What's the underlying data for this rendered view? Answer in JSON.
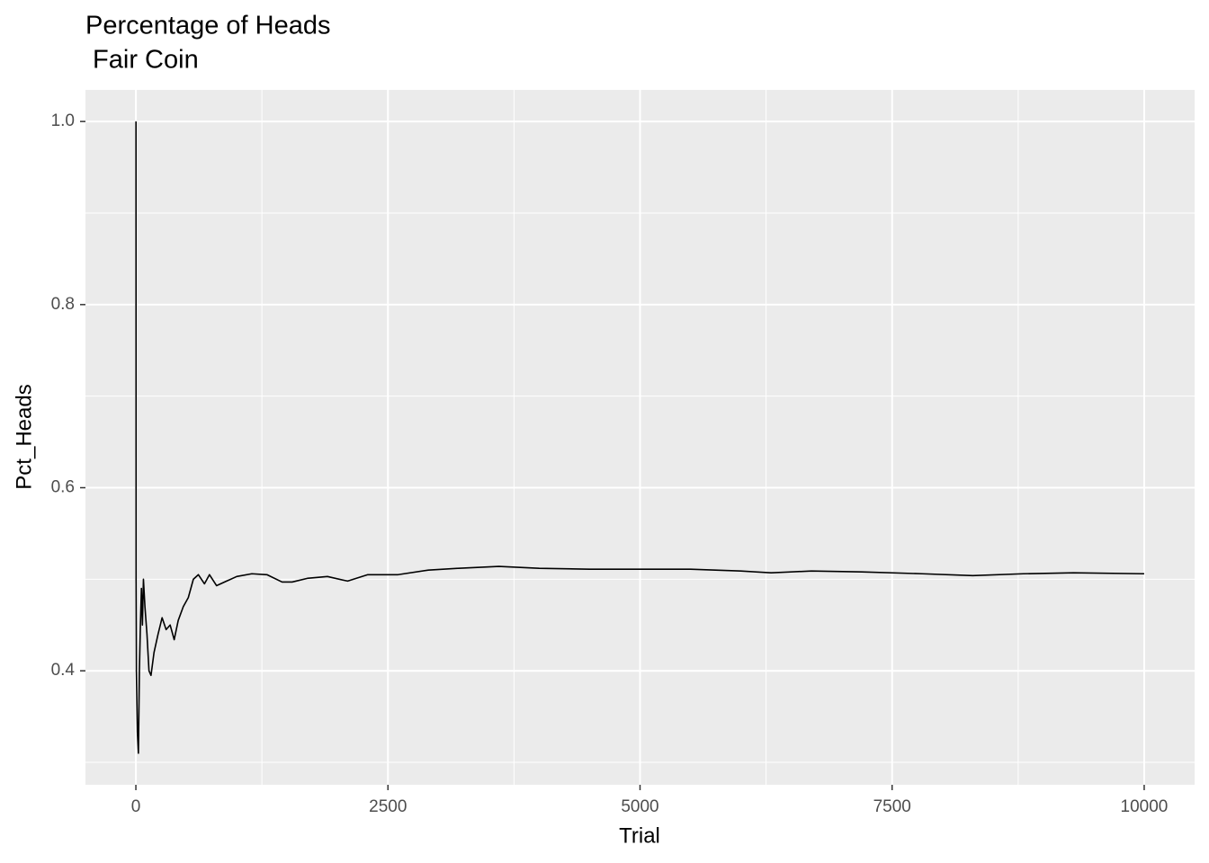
{
  "chart_data": {
    "type": "line",
    "title": "Percentage of Heads",
    "subtitle": " Fair Coin",
    "x_label": "Trial",
    "y_label": "Pct_Heads",
    "x": [
      1,
      2,
      5,
      15,
      25,
      35,
      45,
      55,
      65,
      75,
      90,
      110,
      130,
      150,
      180,
      220,
      260,
      300,
      340,
      380,
      420,
      470,
      520,
      570,
      620,
      680,
      730,
      800,
      900,
      1000,
      1150,
      1300,
      1450,
      1550,
      1700,
      1900,
      2100,
      2300,
      2600,
      2900,
      3200,
      3600,
      4000,
      4500,
      5000,
      5500,
      6000,
      6300,
      6700,
      7200,
      7800,
      8300,
      8800,
      9300,
      10000
    ],
    "series": [
      {
        "color": "#000000",
        "values": [
          1.0,
          0.5,
          0.4,
          0.333,
          0.31,
          0.4,
          0.45,
          0.49,
          0.45,
          0.5,
          0.47,
          0.44,
          0.4,
          0.395,
          0.42,
          0.44,
          0.458,
          0.445,
          0.45,
          0.434,
          0.455,
          0.47,
          0.48,
          0.5,
          0.505,
          0.495,
          0.505,
          0.493,
          0.498,
          0.503,
          0.506,
          0.505,
          0.497,
          0.497,
          0.501,
          0.503,
          0.498,
          0.505,
          0.505,
          0.51,
          0.512,
          0.514,
          0.512,
          0.511,
          0.511,
          0.511,
          0.509,
          0.507,
          0.509,
          0.508,
          0.506,
          0.504,
          0.506,
          0.507,
          0.506
        ]
      }
    ],
    "xlim": [
      -500,
      10500
    ],
    "ylim": [
      0.2755,
      1.0345
    ],
    "xticks": [
      0,
      2500,
      5000,
      7500,
      10000
    ],
    "yticks": [
      0.4,
      0.6,
      0.8,
      {
        "value": 1.0,
        "label": "1.0"
      }
    ],
    "x_minor_ticks": [
      1250,
      3750,
      6250,
      8750
    ],
    "y_minor_ticks": [
      0.3,
      0.5,
      0.7,
      0.9
    ],
    "grid": true,
    "panel_color": "#ebebeb"
  }
}
